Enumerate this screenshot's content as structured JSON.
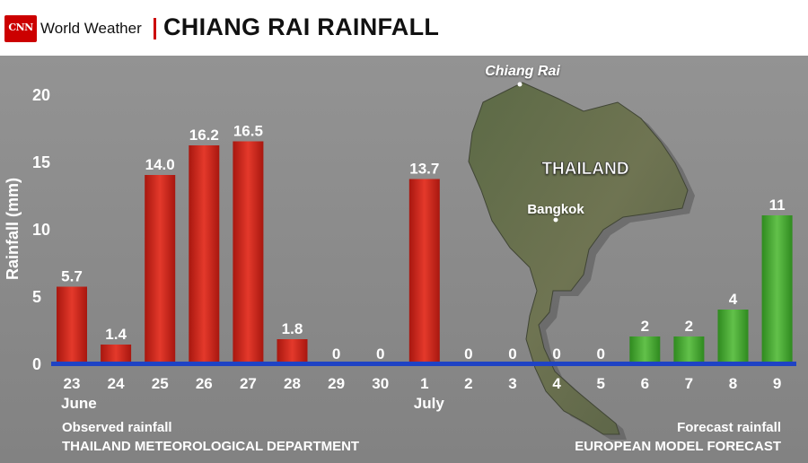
{
  "header": {
    "logo_text": "CNN",
    "brand": "World Weather",
    "title": "CHIANG RAI RAINFALL"
  },
  "colors": {
    "observed": "#cc2219",
    "forecast": "#3fa82a",
    "baseline": "#1f43c4",
    "background": "#8a8a8a",
    "brand_red": "#cc0000"
  },
  "map": {
    "labels": [
      "Chiang Rai",
      "THAILAND",
      "Bangkok"
    ]
  },
  "chart_data": {
    "type": "bar",
    "ylabel": "Rainfall (mm)",
    "ylim": [
      0,
      20
    ],
    "yticks": [
      0,
      5,
      10,
      15,
      20
    ],
    "grid": false,
    "categories": [
      "23",
      "24",
      "25",
      "26",
      "27",
      "28",
      "29",
      "30",
      "1",
      "2",
      "3",
      "4",
      "5",
      "6",
      "7",
      "8",
      "9"
    ],
    "month_labels": [
      {
        "category_index": 0,
        "text": "June"
      },
      {
        "category_index": 8,
        "text": "July"
      }
    ],
    "series": [
      {
        "name": "Observed rainfall",
        "source": "THAILAND METEOROLOGICAL DEPARTMENT",
        "color": "#cc2219",
        "values": [
          5.7,
          1.4,
          14.0,
          16.2,
          16.5,
          1.8,
          0,
          0,
          13.7,
          0,
          0,
          0,
          0,
          null,
          null,
          null,
          null
        ],
        "labels": [
          "5.7",
          "1.4",
          "14.0",
          "16.2",
          "16.5",
          "1.8",
          "0",
          "0",
          "13.7",
          "0",
          "0",
          "0",
          "0",
          "",
          "",
          "",
          ""
        ]
      },
      {
        "name": "Forecast rainfall",
        "source": "EUROPEAN MODEL FORECAST",
        "color": "#3fa82a",
        "values": [
          null,
          null,
          null,
          null,
          null,
          null,
          null,
          null,
          null,
          null,
          null,
          null,
          null,
          2,
          2,
          4,
          11
        ],
        "labels": [
          "",
          "",
          "",
          "",
          "",
          "",
          "",
          "",
          "",
          "",
          "",
          "",
          "",
          "2",
          "2",
          "4",
          "11"
        ]
      }
    ]
  }
}
